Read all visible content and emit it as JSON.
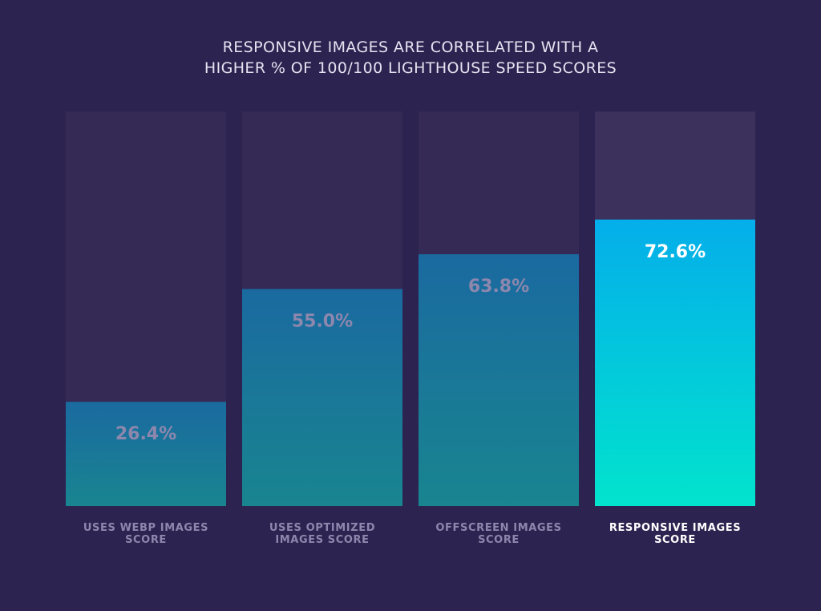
{
  "title_lines": [
    "RESPONSIVE IMAGES ARE CORRELATED WITH A",
    "HIGHER % OF 100/100 LIGHTHOUSE SPEED SCORES"
  ],
  "chart_data": {
    "type": "bar",
    "title": "RESPONSIVE IMAGES ARE CORRELATED WITH A HIGHER % OF 100/100 LIGHTHOUSE SPEED SCORES",
    "categories": [
      [
        "USES WEBP IMAGES",
        "SCORE"
      ],
      [
        "USES OPTIMIZED",
        "IMAGES SCORE"
      ],
      [
        "OFFSCREEN IMAGES",
        "SCORE"
      ],
      [
        "RESPONSIVE IMAGES",
        "SCORE"
      ]
    ],
    "values": [
      26.4,
      55.0,
      63.8,
      72.6
    ],
    "value_labels": [
      "26.4%",
      "55.0%",
      "63.8%",
      "72.6%"
    ],
    "highlight_index": 3,
    "ylim": [
      0,
      100
    ],
    "xlabel": "",
    "ylabel": "",
    "grid": false,
    "colors": {
      "background": "#2d2350",
      "track": "#342a55",
      "track_highlight": "#3c305d",
      "bar_top": "#1a6aa0",
      "bar_bottom": "#198590",
      "highlight_top": "#04aeea",
      "highlight_bottom": "#02e3cd",
      "label_muted": "#8d87ad",
      "label_highlight": "#ffffff"
    }
  }
}
